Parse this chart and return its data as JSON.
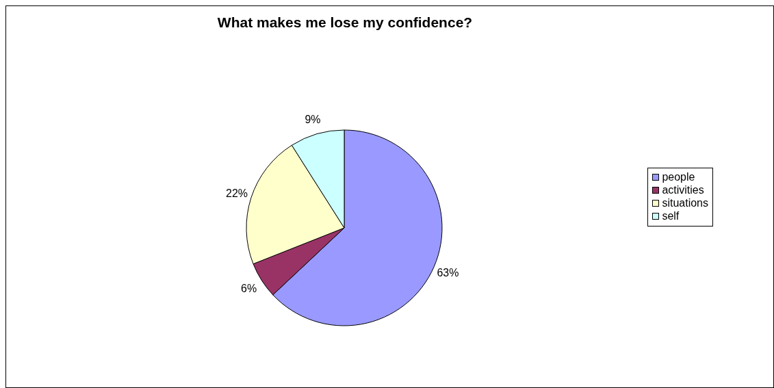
{
  "chart_data": {
    "type": "pie",
    "title": "What makes me lose my confidence?",
    "categories": [
      "people",
      "activities",
      "situations",
      "self"
    ],
    "values": [
      63,
      6,
      22,
      9
    ],
    "colors": [
      "#9999ff",
      "#993366",
      "#ffffcc",
      "#ccffff"
    ],
    "value_labels": [
      "63%",
      "6%",
      "22%",
      "9%"
    ],
    "legend": "right"
  }
}
